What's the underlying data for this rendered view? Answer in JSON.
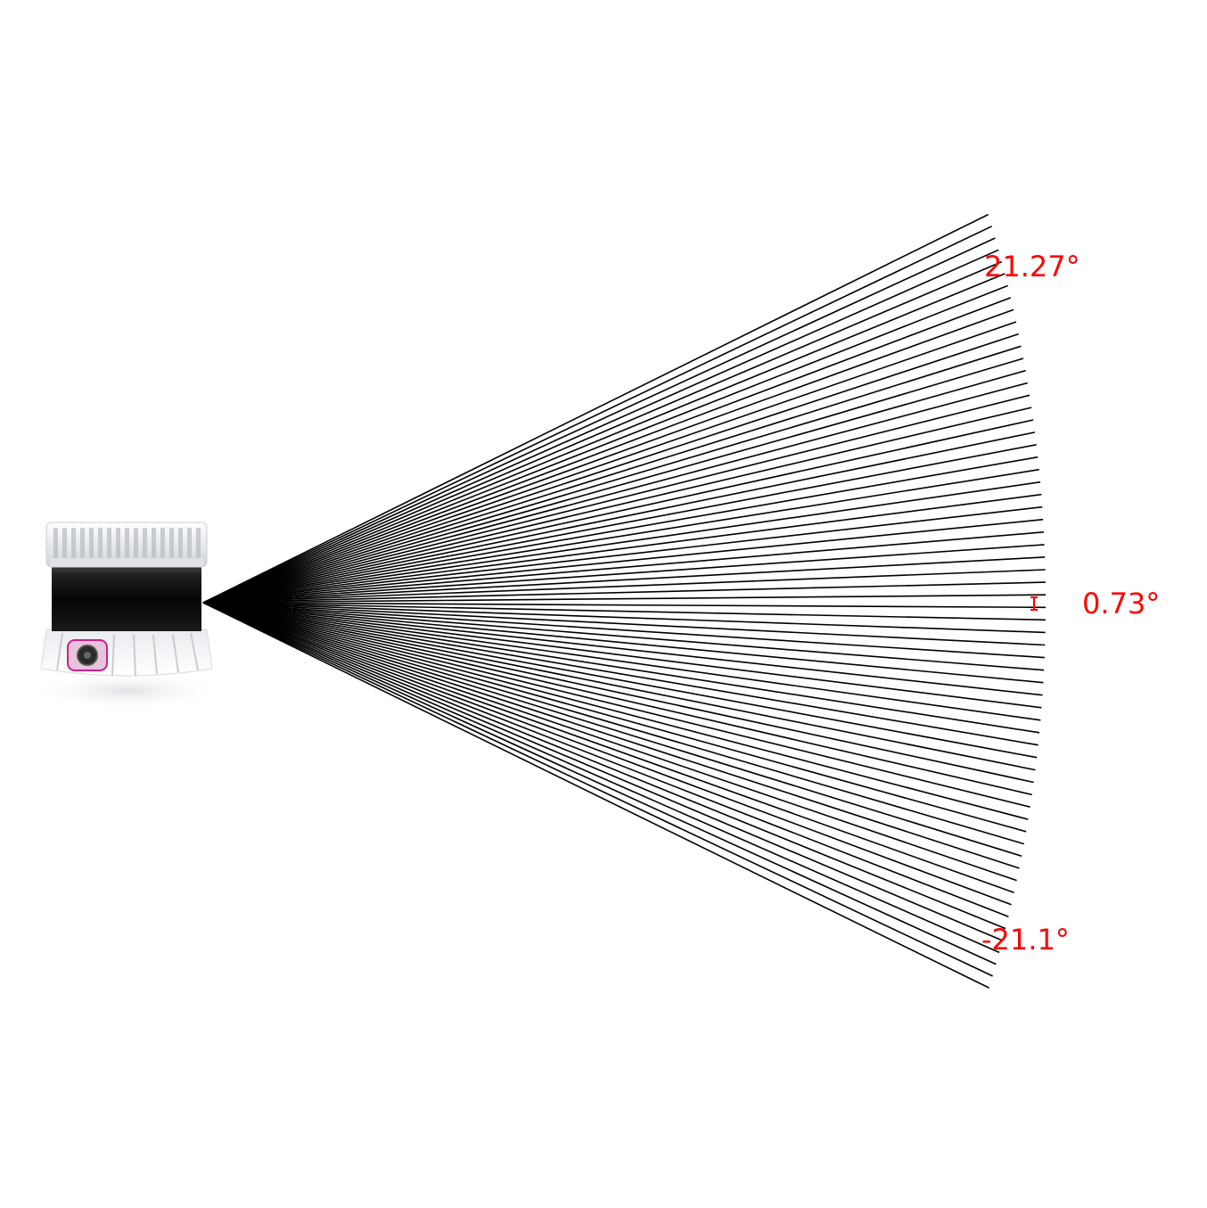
{
  "diagram": {
    "device": "lidar-sensor",
    "beam_count": 64,
    "max_angle_deg": 21.27,
    "min_angle_deg": -21.1,
    "angular_resolution_deg": 0.73,
    "labels": {
      "top": "21.27°",
      "resolution": "0.73°",
      "bottom": "-21.1°"
    },
    "colors": {
      "beam": "#000000",
      "label": "#ff0000",
      "sensor_body": "#f2f2f2",
      "sensor_window": "#111111",
      "sensor_connector": "#d0208a",
      "background": "#ffffff"
    }
  }
}
